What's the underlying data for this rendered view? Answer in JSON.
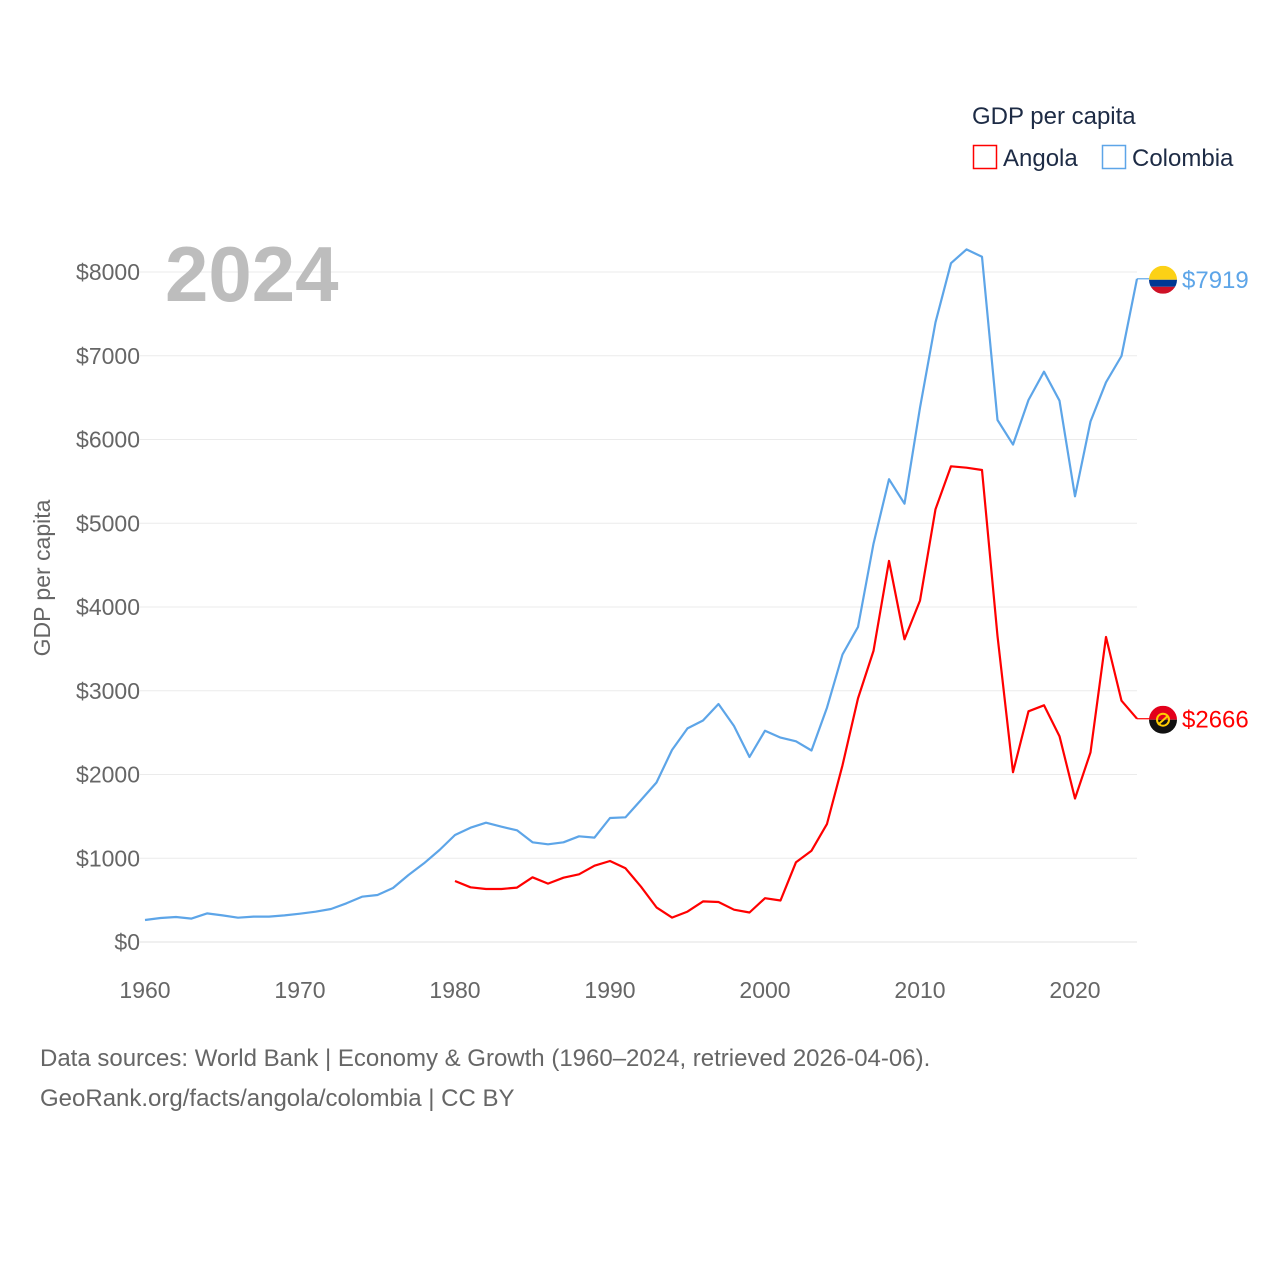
{
  "chart_data": {
    "type": "line",
    "title": "2024",
    "legend_title": "GDP per capita",
    "legend_placement": "top-right",
    "ylabel": "GDP per capita",
    "xlabel": "",
    "xlim": [
      1960,
      2024
    ],
    "ylim": [
      0,
      8000
    ],
    "x_ticks": [
      1960,
      1970,
      1980,
      1990,
      2000,
      2010,
      2020
    ],
    "y_ticks": [
      0,
      1000,
      2000,
      3000,
      4000,
      5000,
      6000,
      7000,
      8000
    ],
    "y_tick_labels": [
      "$0",
      "$1000",
      "$2000",
      "$3000",
      "$4000",
      "$5000",
      "$6000",
      "$7000",
      "$8000"
    ],
    "grid": true,
    "series": [
      {
        "name": "Angola",
        "color": "#ff0000",
        "start_year": 1980,
        "end_label": "$2666",
        "flag": "angola-flag",
        "values": [
          728,
          653,
          633,
          633,
          649,
          772,
          697,
          768,
          808,
          911,
          967,
          880,
          660,
          413,
          291,
          363,
          485,
          478,
          386,
          352,
          523,
          495,
          953,
          1090,
          1410,
          2110,
          2909,
          3476,
          4550,
          3614,
          4076,
          5168,
          5680,
          5663,
          5636,
          3654,
          2027,
          2755,
          2826,
          2457,
          1713,
          2264,
          3642,
          2881,
          2666
        ]
      },
      {
        "name": "Colombia",
        "color": "#5da5e8",
        "start_year": 1960,
        "end_label": "$7919",
        "flag": "colombia-flag",
        "values": [
          263,
          287,
          299,
          279,
          342,
          318,
          290,
          303,
          303,
          318,
          338,
          362,
          394,
          462,
          541,
          561,
          645,
          800,
          940,
          1098,
          1278,
          1365,
          1425,
          1377,
          1334,
          1190,
          1166,
          1190,
          1262,
          1246,
          1481,
          1489,
          1696,
          1905,
          2292,
          2550,
          2645,
          2842,
          2579,
          2209,
          2523,
          2441,
          2396,
          2287,
          2799,
          3433,
          3762,
          4756,
          5526,
          5234,
          6380,
          7399,
          8105,
          8270,
          8181,
          6233,
          5939,
          6472,
          6809,
          6463,
          5322,
          6215,
          6683,
          6997,
          7919
        ]
      }
    ]
  },
  "footer": {
    "line1": "Data sources: World Bank | Economy & Growth (1960–2024, retrieved 2026-04-06).",
    "line2": "GeoRank.org/facts/angola/colombia | CC BY"
  }
}
